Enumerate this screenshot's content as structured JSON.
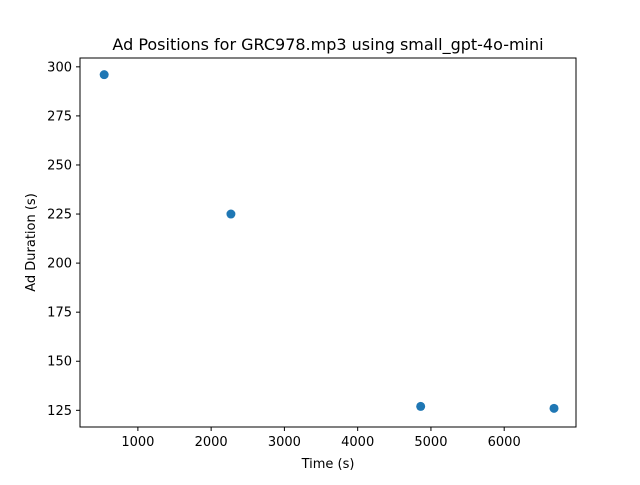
{
  "chart_data": {
    "type": "scatter",
    "title": "Ad Positions for GRC978.mp3 using small_gpt-4o-mini",
    "xlabel": "Time (s)",
    "ylabel": "Ad Duration (s)",
    "xlim": [
      210,
      6980
    ],
    "ylim": [
      116.5,
      304.5
    ],
    "xticks": [
      1000,
      2000,
      3000,
      4000,
      5000,
      6000
    ],
    "yticks": [
      125,
      150,
      175,
      200,
      225,
      250,
      275,
      300
    ],
    "grid": false,
    "color": "#1f77b4",
    "points": [
      {
        "x": 540,
        "y": 296
      },
      {
        "x": 2270,
        "y": 225
      },
      {
        "x": 4860,
        "y": 127
      },
      {
        "x": 6680,
        "y": 126
      }
    ]
  }
}
